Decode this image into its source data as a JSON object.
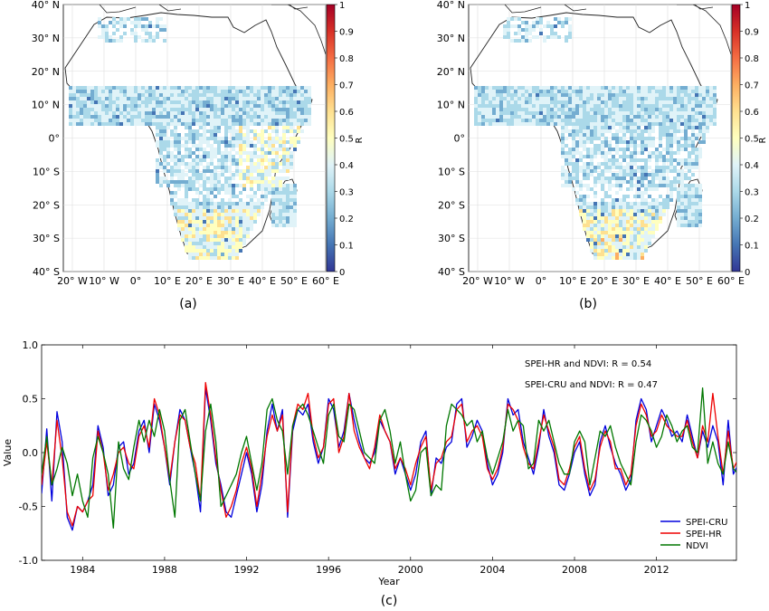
{
  "panels": {
    "a": {
      "caption": "(a)"
    },
    "b": {
      "caption": "(b)"
    },
    "c": {
      "caption": "(c)"
    }
  },
  "maps": {
    "lat_ticks": [
      "40° N",
      "30° N",
      "20° N",
      "10° N",
      "0°",
      "10° S",
      "20° S",
      "30° S",
      "40° S"
    ],
    "lon_ticks": [
      "20° W",
      "10° W",
      "0°",
      "10° E",
      "20° E",
      "30° E",
      "40° E",
      "50° E",
      "60° E"
    ],
    "colorbar": {
      "label": "R",
      "ticks": [
        "1",
        "0.9",
        "0.8",
        "0.7",
        "0.6",
        "0.5",
        "0.4",
        "0.3",
        "0.2",
        "0.1",
        "0"
      ],
      "range": [
        0,
        1
      ],
      "colormap": [
        "#313695",
        "#4575b4",
        "#74add1",
        "#abd9e9",
        "#e0f3f8",
        "#ffffbf",
        "#fee090",
        "#fdae61",
        "#f46d43",
        "#d73027",
        "#a50026"
      ]
    },
    "land_color": "#ffffff",
    "coast_color": "#222222"
  },
  "chart_data": {
    "type": "line",
    "x_range": [
      1982,
      2015.9
    ],
    "ylim": [
      -1.0,
      1.0
    ],
    "yticks": [
      "1.0",
      "0.5",
      "0.0",
      "-0.5",
      "-1.0"
    ],
    "xticks": [
      "1984",
      "1988",
      "1992",
      "1996",
      "2000",
      "2004",
      "2008",
      "2012"
    ],
    "xlabel": "Year",
    "ylabel": "Value",
    "grid": false,
    "legend_position": "bottom-right",
    "annotations": [
      "SPEI-HR and NDVI: R = 0.54",
      "SPEI-CRU and NDVI: R = 0.47"
    ],
    "series": [
      {
        "name": "SPEI-CRU",
        "color": "#0000dd"
      },
      {
        "name": "SPEI-HR",
        "color": "#ee0000"
      },
      {
        "name": "NDVI",
        "color": "#007700"
      }
    ],
    "time_step_years": 0.25,
    "series_values": {
      "SPEI-CRU": [
        -0.38,
        0.22,
        -0.45,
        0.38,
        0.1,
        -0.6,
        -0.72,
        -0.5,
        -0.55,
        -0.45,
        -0.3,
        0.25,
        0.05,
        -0.4,
        -0.3,
        0.05,
        0.1,
        -0.2,
        -0.1,
        0.2,
        0.3,
        0.0,
        0.45,
        0.3,
        0.05,
        -0.3,
        0.1,
        0.4,
        0.3,
        0.05,
        -0.2,
        -0.55,
        0.6,
        0.3,
        -0.1,
        -0.3,
        -0.55,
        -0.6,
        -0.4,
        -0.2,
        0.0,
        -0.2,
        -0.55,
        -0.3,
        0.2,
        0.45,
        0.2,
        0.4,
        -0.6,
        0.2,
        0.4,
        0.35,
        0.45,
        0.1,
        -0.1,
        0.05,
        0.5,
        0.4,
        0.05,
        0.2,
        0.55,
        0.3,
        0.1,
        -0.05,
        -0.1,
        0.0,
        0.3,
        0.2,
        0.1,
        -0.2,
        -0.05,
        -0.2,
        -0.35,
        -0.2,
        0.1,
        0.2,
        -0.4,
        -0.05,
        -0.1,
        0.05,
        0.1,
        0.45,
        0.5,
        0.05,
        0.15,
        0.3,
        0.2,
        -0.1,
        -0.3,
        -0.2,
        0.0,
        0.5,
        0.35,
        0.4,
        0.1,
        -0.05,
        -0.2,
        0.05,
        0.4,
        0.15,
        0.0,
        -0.3,
        -0.35,
        -0.2,
        0.0,
        0.1,
        -0.2,
        -0.4,
        -0.3,
        0.1,
        0.25,
        0.05,
        -0.1,
        -0.2,
        -0.35,
        -0.25,
        0.3,
        0.5,
        0.4,
        0.1,
        0.25,
        0.4,
        0.3,
        0.15,
        0.2,
        0.1,
        0.35,
        0.15,
        -0.05,
        0.2,
        0.05,
        0.25,
        0.1,
        -0.3,
        0.3,
        -0.2,
        -0.1,
        0.1,
        -0.4,
        -0.2,
        -0.25,
        -0.3
      ],
      "SPEI-HR": [
        -0.3,
        0.1,
        -0.3,
        0.3,
        -0.05,
        -0.55,
        -0.68,
        -0.5,
        -0.55,
        -0.45,
        -0.4,
        0.2,
        0.0,
        -0.35,
        -0.2,
        0.0,
        0.05,
        -0.1,
        -0.15,
        0.15,
        0.25,
        0.05,
        0.5,
        0.35,
        0.05,
        -0.25,
        0.1,
        0.35,
        0.3,
        0.05,
        -0.1,
        -0.45,
        0.65,
        0.35,
        -0.05,
        -0.35,
        -0.6,
        -0.5,
        -0.35,
        -0.1,
        0.05,
        -0.15,
        -0.5,
        -0.2,
        0.15,
        0.35,
        0.2,
        0.35,
        -0.55,
        0.25,
        0.45,
        0.4,
        0.55,
        0.15,
        -0.05,
        0.05,
        0.45,
        0.5,
        0.0,
        0.15,
        0.55,
        0.2,
        0.05,
        -0.05,
        -0.15,
        0.05,
        0.35,
        0.2,
        0.1,
        -0.15,
        -0.05,
        -0.15,
        -0.3,
        -0.1,
        0.05,
        0.15,
        -0.35,
        -0.1,
        -0.05,
        0.1,
        0.15,
        0.4,
        0.45,
        0.1,
        0.2,
        0.25,
        0.15,
        -0.15,
        -0.25,
        -0.15,
        0.05,
        0.45,
        0.4,
        0.3,
        0.05,
        -0.1,
        -0.15,
        0.1,
        0.35,
        0.2,
        0.05,
        -0.25,
        -0.3,
        -0.15,
        0.05,
        0.15,
        -0.15,
        -0.35,
        -0.25,
        0.05,
        0.2,
        0.1,
        -0.15,
        -0.15,
        -0.3,
        -0.2,
        0.25,
        0.45,
        0.35,
        0.15,
        0.2,
        0.35,
        0.25,
        0.2,
        0.15,
        0.15,
        0.3,
        0.1,
        -0.05,
        0.25,
        0.1,
        0.55,
        0.15,
        -0.2,
        0.2,
        -0.15,
        -0.05,
        0.05,
        -0.45,
        -0.2,
        -0.25,
        -0.28
      ],
      "NDVI": [
        -0.2,
        0.15,
        -0.3,
        -0.15,
        0.05,
        -0.1,
        -0.4,
        -0.2,
        -0.45,
        -0.6,
        -0.05,
        0.15,
        0.0,
        -0.2,
        -0.7,
        0.1,
        -0.15,
        -0.25,
        0.05,
        0.3,
        0.1,
        0.3,
        0.15,
        0.4,
        0.2,
        -0.25,
        -0.6,
        0.3,
        0.4,
        0.1,
        -0.2,
        -0.45,
        0.2,
        0.45,
        0.1,
        -0.5,
        -0.4,
        -0.3,
        -0.2,
        0.0,
        0.15,
        -0.1,
        -0.35,
        -0.1,
        0.4,
        0.5,
        0.3,
        0.2,
        -0.2,
        0.25,
        0.4,
        0.45,
        0.35,
        0.2,
        0.05,
        -0.1,
        0.35,
        0.45,
        0.15,
        0.1,
        0.45,
        0.4,
        0.2,
        0.0,
        -0.05,
        -0.1,
        0.3,
        0.4,
        0.2,
        -0.1,
        0.1,
        -0.2,
        -0.45,
        -0.35,
        0.0,
        0.05,
        -0.4,
        -0.3,
        -0.35,
        0.25,
        0.45,
        0.4,
        0.35,
        0.25,
        0.3,
        0.1,
        0.2,
        -0.05,
        -0.2,
        -0.05,
        0.1,
        0.4,
        0.2,
        0.3,
        0.25,
        -0.15,
        -0.1,
        0.3,
        0.2,
        0.3,
        0.1,
        -0.1,
        -0.2,
        -0.2,
        0.1,
        0.2,
        0.1,
        -0.3,
        -0.05,
        0.2,
        0.15,
        0.25,
        0.05,
        -0.1,
        -0.2,
        -0.3,
        0.1,
        0.35,
        0.3,
        0.2,
        0.05,
        0.15,
        0.35,
        0.25,
        0.1,
        0.2,
        0.25,
        0.05,
        0.0,
        0.6,
        -0.1,
        0.1,
        -0.1,
        -0.2,
        0.1,
        -0.15,
        -0.2,
        -0.1,
        -0.3,
        -0.2,
        -0.4,
        0.25
      ]
    }
  }
}
